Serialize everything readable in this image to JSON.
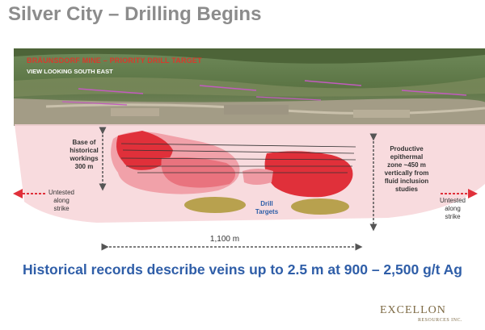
{
  "slide": {
    "title": "Silver City – Drilling Begins",
    "headline": "Historical records describe veins up to 2.5 m at 900 – 2,500 g/t Ag"
  },
  "aerial": {
    "title": "BRÄUNSDORF MINE – PRIORITY DRILL TARGET",
    "subtitle": "VIEW LOOKING SOUTH EAST"
  },
  "section": {
    "base_label": [
      "Base of",
      "historical",
      "workings",
      "300 m"
    ],
    "productive_label": [
      "Productive",
      "epithermal",
      "zone ~450 m",
      "vertically from",
      "fluid inclusion",
      "studies"
    ],
    "untested_left": [
      "Untested",
      "along",
      "strike"
    ],
    "untested_right": [
      "Untested",
      "along",
      "strike"
    ],
    "drill_label": [
      "Drill",
      "Targets"
    ],
    "distance_label": "1,100 m"
  },
  "colors": {
    "title_gray": "#8c8c8c",
    "headline_blue": "#2f5ea8",
    "vein_red": "#e0303a",
    "halo_pink": "#f7d5d8",
    "drill_olive": "#b8a14e",
    "arrow_red": "#e0303a"
  },
  "logo": {
    "name": "EXCELLON",
    "tagline": "RESOURCES INC."
  }
}
